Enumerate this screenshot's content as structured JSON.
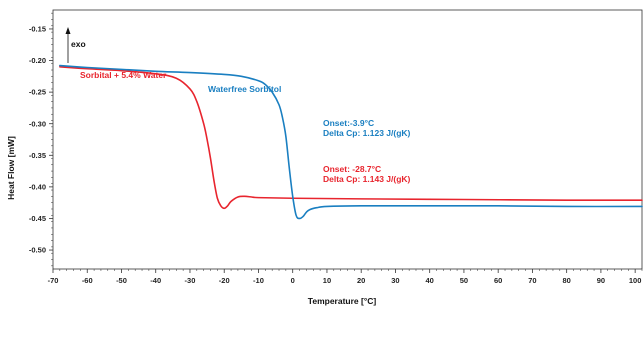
{
  "chart_data": {
    "type": "line",
    "xlabel": "Temperature [°C]",
    "ylabel": "Heat Flow [mW]",
    "xlim": [
      -70,
      102
    ],
    "ylim": [
      -0.53,
      -0.12
    ],
    "x_ticks": [
      -70,
      -60,
      -50,
      -40,
      -30,
      -20,
      -10,
      0,
      10,
      20,
      30,
      40,
      50,
      60,
      70,
      80,
      90,
      100
    ],
    "y_ticks": [
      -0.15,
      -0.2,
      -0.25,
      -0.3,
      -0.35,
      -0.4,
      -0.45,
      -0.5
    ],
    "y_tick_labels": [
      "-0.15",
      "-0.20",
      "-0.25",
      "-0.30",
      "-0.35",
      "-0.40",
      "-0.45",
      "-0.50"
    ],
    "exo_label": "exo",
    "series": [
      {
        "name": "Sorbital + 5.4% Water",
        "color": "#e8252e",
        "x": [
          -68,
          -60,
          -50,
          -40,
          -34,
          -30,
          -28,
          -26,
          -25,
          -24,
          -23,
          -22,
          -21,
          -20,
          -19,
          -18,
          -16,
          -14,
          -12,
          -10,
          0,
          20,
          50,
          80,
          102
        ],
        "y": [
          -0.21,
          -0.213,
          -0.216,
          -0.221,
          -0.228,
          -0.245,
          -0.265,
          -0.3,
          -0.325,
          -0.355,
          -0.39,
          -0.418,
          -0.43,
          -0.434,
          -0.43,
          -0.423,
          -0.416,
          -0.415,
          -0.416,
          -0.417,
          -0.418,
          -0.419,
          -0.42,
          -0.421,
          -0.421
        ]
      },
      {
        "name": "Waterfree Sorbitol",
        "color": "#1a7fc1",
        "x": [
          -68,
          -60,
          -50,
          -40,
          -30,
          -20,
          -15,
          -10,
          -8,
          -6,
          -4,
          -3,
          -2,
          -1,
          0,
          1,
          2,
          3,
          4,
          5,
          7,
          10,
          20,
          40,
          60,
          80,
          102
        ],
        "y": [
          -0.208,
          -0.211,
          -0.214,
          -0.217,
          -0.219,
          -0.222,
          -0.225,
          -0.232,
          -0.238,
          -0.25,
          -0.27,
          -0.29,
          -0.32,
          -0.37,
          -0.415,
          -0.445,
          -0.45,
          -0.447,
          -0.44,
          -0.436,
          -0.433,
          -0.431,
          -0.43,
          -0.43,
          -0.43,
          -0.431,
          -0.431
        ]
      }
    ],
    "annotations": [
      {
        "lines": [
          "Onset:-3.9°C",
          "Delta Cp: 1.123 J/(gK)"
        ],
        "color": "#1a7fc1"
      },
      {
        "lines": [
          "Onset: -28.7°C",
          "Delta Cp: 1.143 J/(gK)"
        ],
        "color": "#e8252e"
      }
    ]
  }
}
